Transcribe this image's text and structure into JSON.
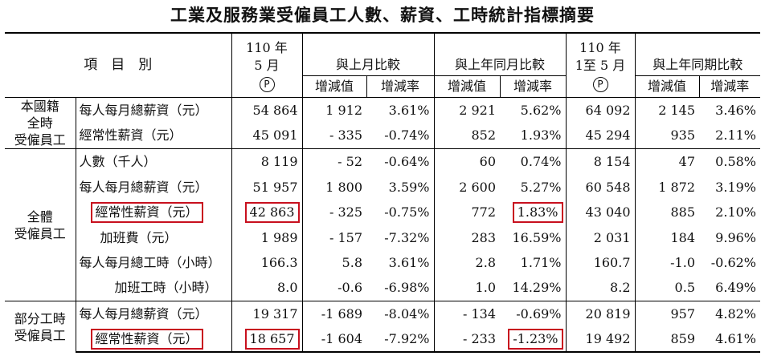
{
  "title": "工業及服務業受僱員工人數、薪資、工時統計指標摘要",
  "header": {
    "item_label": "項　目　別",
    "month_line1": "110 年",
    "month_line2": "5 月",
    "month_mark": "P",
    "mom_label": "與上月比較",
    "yoy_label": "與上年同月比較",
    "ytd_line1": "110 年",
    "ytd_line2": "1至 5 月",
    "ytd_mark": "P",
    "ytd_cmp_label": "與上年同期比較",
    "inc_value": "增減值",
    "inc_rate": "增減率"
  },
  "groups": {
    "g1": "本國籍\n全時\n受僱員工",
    "g2": "全體\n受僱員工",
    "g3": "部分工時\n受僱員工"
  },
  "rows": [
    {
      "label": "每人每月總薪資（元）",
      "v": [
        "54 864",
        "1 912",
        "3.61%",
        "2 921",
        "5.62%",
        "64 092",
        "2 145",
        "3.46%"
      ]
    },
    {
      "label": "經常性薪資（元）",
      "v": [
        "45 091",
        "- 335",
        "-0.74%",
        "852",
        "1.93%",
        "45 294",
        "935",
        "2.11%"
      ]
    },
    {
      "label": "人數（千人）",
      "v": [
        "8 119",
        "- 52",
        "-0.64%",
        "60",
        "0.74%",
        "8 154",
        "47",
        "0.58%"
      ]
    },
    {
      "label": "每人每月總薪資（元）",
      "v": [
        "51 957",
        "1 800",
        "3.59%",
        "2 600",
        "5.27%",
        "60 548",
        "1 872",
        "3.19%"
      ]
    },
    {
      "label": "經常性薪資（元）",
      "v": [
        "42 863",
        "- 325",
        "-0.75%",
        "772",
        "1.83%",
        "43 040",
        "885",
        "2.10%"
      ]
    },
    {
      "label": "加班費（元）",
      "v": [
        "1 989",
        "- 157",
        "-7.32%",
        "283",
        "16.59%",
        "2 031",
        "184",
        "9.96%"
      ]
    },
    {
      "label": "每人每月總工時（小時）",
      "v": [
        "166.3",
        "5.8",
        "3.61%",
        "2.8",
        "1.71%",
        "160.7",
        "-1.0",
        "-0.62%"
      ]
    },
    {
      "label": "加班工時（小時）",
      "v": [
        "8.0",
        "-0.6",
        "-6.98%",
        "1.0",
        "14.29%",
        "8.2",
        "0.5",
        "6.49%"
      ]
    },
    {
      "label": "每人每月總薪資（元）",
      "v": [
        "19 317",
        "-1 689",
        "-8.04%",
        "- 134",
        "-0.69%",
        "20 819",
        "957",
        "4.82%"
      ]
    },
    {
      "label": "經常性薪資（元）",
      "v": [
        "18 657",
        "-1 604",
        "-7.92%",
        "- 233",
        "-1.23%",
        "19 492",
        "859",
        "4.61%"
      ]
    }
  ],
  "highlight_color": "#c8101e"
}
